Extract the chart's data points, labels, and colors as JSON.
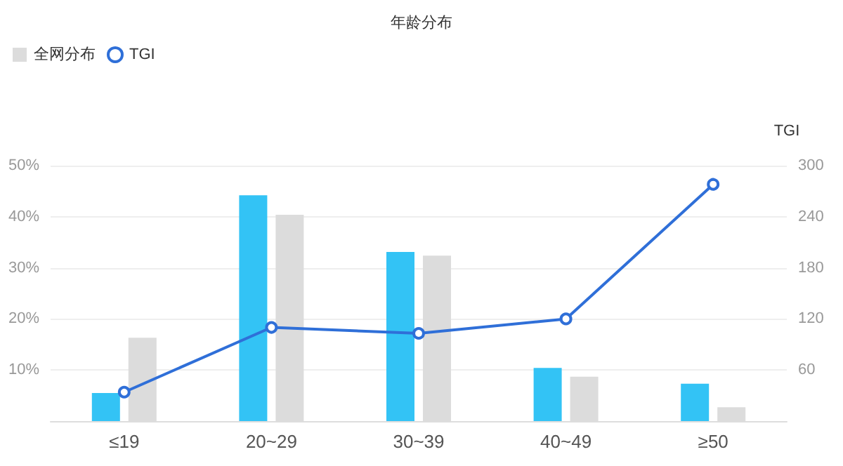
{
  "chart_data": {
    "type": "bar",
    "title": "年龄分布",
    "categories": [
      "≤19",
      "20~29",
      "30~39",
      "40~49",
      "≥50"
    ],
    "series": [
      {
        "color": "#33c3f5",
        "values": [
          5.5,
          44.2,
          33.1,
          10.4,
          7.3
        ]
      },
      {
        "name": "全网分布",
        "color": "#dcdcdc",
        "values": [
          16.3,
          40.4,
          32.4,
          8.7,
          2.7
        ]
      },
      {
        "name": "TGI",
        "type": "line",
        "axis": "y2",
        "color": "#2f6fd8",
        "marker": "circle",
        "values": [
          34,
          110,
          103,
          120,
          278
        ]
      }
    ],
    "ylim": [
      0,
      50
    ],
    "yticks": [
      {
        "value": 0,
        "label": null
      },
      {
        "value": 10,
        "label": "10%"
      },
      {
        "value": 20,
        "label": "20%"
      },
      {
        "value": 30,
        "label": "30%"
      },
      {
        "value": 40,
        "label": "40%"
      },
      {
        "value": 50,
        "label": "50%"
      }
    ],
    "y2label": "TGI",
    "y2lim": [
      0,
      300
    ],
    "y2ticks": [
      60,
      120,
      180,
      240,
      300
    ],
    "grid": "y",
    "legend": "top left"
  }
}
